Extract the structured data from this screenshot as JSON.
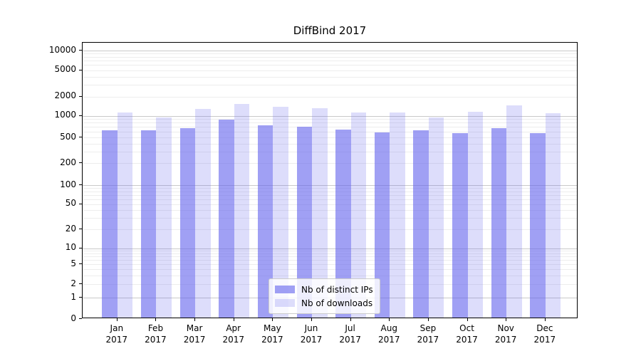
{
  "title": "DiffBind 2017",
  "colors": {
    "bar_distinct_ips": "rgba(102,102,238,0.62)",
    "bar_downloads": "rgba(102,102,238,0.22)",
    "grid_major": "#c9c9c9",
    "grid_minor": "#ededed",
    "spine": "#000000",
    "legend_border": "#cccccc"
  },
  "legend": {
    "items": [
      {
        "label": "Nb of distinct IPs"
      },
      {
        "label": "Nb of downloads"
      }
    ]
  },
  "chart_data": {
    "type": "bar",
    "title": "DiffBind 2017",
    "categories": [
      "Jan 2017",
      "Feb 2017",
      "Mar 2017",
      "Apr 2017",
      "May 2017",
      "Jun 2017",
      "Jul 2017",
      "Aug 2017",
      "Sep 2017",
      "Oct 2017",
      "Nov 2017",
      "Dec 2017"
    ],
    "month_labels": [
      "Jan",
      "Feb",
      "Mar",
      "Apr",
      "May",
      "Jun",
      "Jul",
      "Aug",
      "Sep",
      "Oct",
      "Nov",
      "Dec"
    ],
    "year_label": "2017",
    "series": [
      {
        "name": "Nb of distinct IPs",
        "values": [
          600,
          595,
          650,
          855,
          700,
          680,
          610,
          555,
          595,
          550,
          640,
          548
        ]
      },
      {
        "name": "Nb of downloads",
        "values": [
          1060,
          900,
          1230,
          1460,
          1310,
          1240,
          1060,
          1080,
          910,
          1100,
          1370,
          1045
        ]
      }
    ],
    "xlabel": "",
    "ylabel": "",
    "y_ticks": [
      0,
      1,
      2,
      5,
      10,
      20,
      50,
      100,
      200,
      500,
      1000,
      2000,
      5000,
      10000
    ],
    "y_scale": "log-like (0 at baseline)",
    "ylim": [
      0,
      13000
    ],
    "grid": true,
    "legend_position": "lower center"
  }
}
